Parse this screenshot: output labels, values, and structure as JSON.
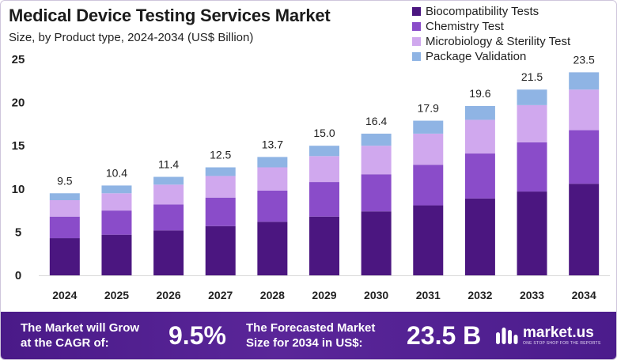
{
  "chart_data": {
    "type": "bar",
    "stacked": true,
    "title": "Medical Device Testing Services Market",
    "subtitle": "Size, by Product type, 2024-2034 (US$ Billion)",
    "categories": [
      "2024",
      "2025",
      "2026",
      "2027",
      "2028",
      "2029",
      "2030",
      "2031",
      "2032",
      "2033",
      "2034"
    ],
    "totals": [
      9.5,
      10.4,
      11.4,
      12.5,
      13.7,
      15.0,
      16.4,
      17.9,
      19.6,
      21.5,
      23.5
    ],
    "total_labels": [
      "9.5",
      "10.4",
      "11.4",
      "12.5",
      "13.7",
      "15.0",
      "16.4",
      "17.9",
      "19.6",
      "21.5",
      "23.5"
    ],
    "series": [
      {
        "name": "Biocompatibility Tests",
        "color": "#4b1680",
        "values": [
          4.3,
          4.7,
          5.2,
          5.7,
          6.2,
          6.8,
          7.4,
          8.1,
          8.9,
          9.7,
          10.6
        ]
      },
      {
        "name": "Chemistry Test",
        "color": "#8a4cc9",
        "values": [
          2.5,
          2.8,
          3.0,
          3.3,
          3.6,
          4.0,
          4.3,
          4.7,
          5.2,
          5.7,
          6.2
        ]
      },
      {
        "name": "Microbiology & Sterility Test",
        "color": "#d0a8ee",
        "values": [
          1.9,
          2.0,
          2.3,
          2.5,
          2.7,
          3.0,
          3.3,
          3.6,
          3.9,
          4.3,
          4.7
        ]
      },
      {
        "name": "Package Validation",
        "color": "#8fb4e4",
        "values": [
          0.8,
          0.9,
          0.9,
          1.0,
          1.2,
          1.2,
          1.4,
          1.5,
          1.6,
          1.8,
          2.0
        ]
      }
    ],
    "ylim": [
      0,
      25
    ],
    "yticks": [
      "0",
      "5",
      "10",
      "15",
      "20",
      "25"
    ],
    "xlabel": "",
    "ylabel": "",
    "legend": "top-right",
    "grid": false
  },
  "footer": {
    "cagr_label_line1": "The Market will Grow",
    "cagr_label_line2": "at the CAGR of:",
    "cagr_value": "9.5%",
    "forecast_label_line1": "The Forecasted Market",
    "forecast_label_line2": "Size for 2034 in US$:",
    "forecast_value": "23.5 B",
    "brand_name": "market.us",
    "brand_tagline": "ONE STOP SHOP FOR THE REPORTS",
    "background_color": "#5a2699"
  }
}
